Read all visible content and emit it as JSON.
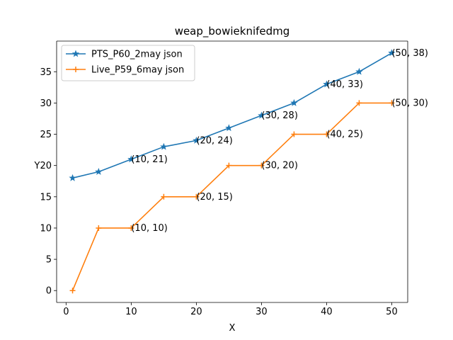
{
  "chart_data": {
    "type": "line",
    "title": "weap_bowieknifedmg",
    "xlabel": "X",
    "ylabel": "",
    "xlim": [
      -1.45,
      52.45
    ],
    "ylim": [
      -1.9,
      39.9
    ],
    "xticks": [
      0,
      10,
      20,
      30,
      40,
      50
    ],
    "yticks": [
      0,
      5,
      10,
      15,
      20,
      25,
      30,
      35
    ],
    "ytick_labels": [
      "0",
      "5",
      "10",
      "15",
      "Y20",
      "25",
      "30",
      "35"
    ],
    "grid": false,
    "legend_position": "upper left",
    "series": [
      {
        "name": "PTS_P60_2may json",
        "color": "#1f77b4",
        "marker": "star",
        "x": [
          1,
          5,
          10,
          15,
          20,
          25,
          30,
          35,
          40,
          45,
          50
        ],
        "y": [
          18,
          19,
          21,
          23,
          24,
          26,
          28,
          30,
          33,
          35,
          38
        ]
      },
      {
        "name": "Live_P59_6may json",
        "color": "#ff7f0e",
        "marker": "plus",
        "x": [
          1,
          5,
          10,
          15,
          20,
          25,
          30,
          35,
          40,
          45,
          50
        ],
        "y": [
          0,
          10,
          10,
          15,
          15,
          20,
          20,
          25,
          25,
          30,
          30
        ]
      }
    ],
    "annotations": [
      {
        "text": "(10, 21)",
        "x": 10,
        "y": 21
      },
      {
        "text": "(20, 24)",
        "x": 20,
        "y": 24
      },
      {
        "text": "(30, 28)",
        "x": 30,
        "y": 28
      },
      {
        "text": "(40, 33)",
        "x": 40,
        "y": 33
      },
      {
        "text": "(50, 38)",
        "x": 50,
        "y": 38
      },
      {
        "text": "(10, 10)",
        "x": 10,
        "y": 10
      },
      {
        "text": "(20, 15)",
        "x": 20,
        "y": 15
      },
      {
        "text": "(30, 20)",
        "x": 30,
        "y": 20
      },
      {
        "text": "(40, 25)",
        "x": 40,
        "y": 25
      },
      {
        "text": "(50, 30)",
        "x": 50,
        "y": 30
      }
    ]
  }
}
